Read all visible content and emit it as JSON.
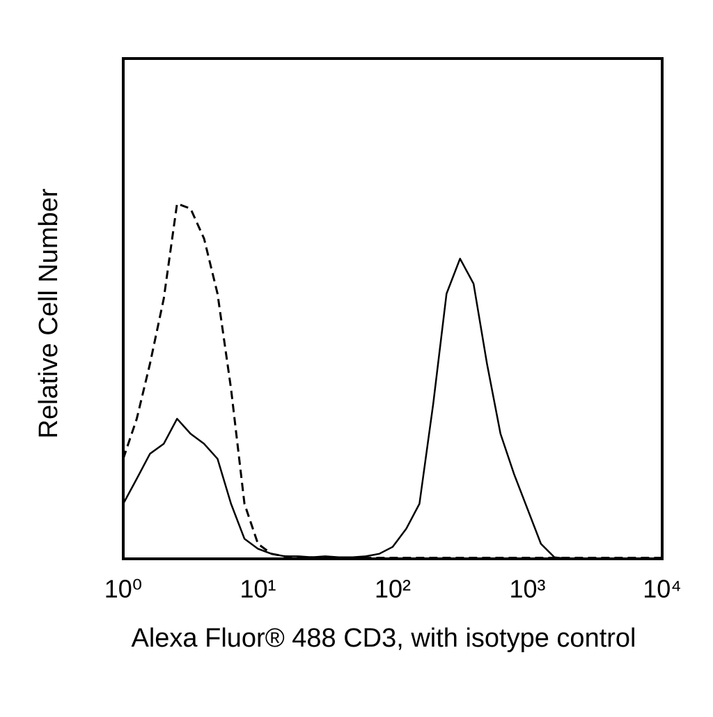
{
  "chart_data": {
    "type": "line",
    "xlabel": "Alexa Fluor® 488 CD3, with isotype control",
    "ylabel": "Relative Cell Number",
    "xscale": "log",
    "xlim": [
      1,
      10000
    ],
    "xticks": [
      {
        "value": 1,
        "label": "10⁰"
      },
      {
        "value": 10,
        "label": "10¹"
      },
      {
        "value": 100,
        "label": "10²"
      },
      {
        "value": 1000,
        "label": "10³"
      },
      {
        "value": 10000,
        "label": "10⁴"
      }
    ],
    "ylim": [
      0,
      100
    ],
    "grid": false,
    "series": [
      {
        "color": "#000000",
        "dash": "dashed",
        "x": [
          1,
          1.26,
          1.58,
          2,
          2.51,
          3.16,
          3.98,
          5.01,
          6.31,
          7.94,
          10,
          12.6,
          15.8,
          20,
          25.1,
          31.6,
          39.8,
          50.1,
          63.1,
          79.4,
          100,
          126,
          158,
          200,
          251,
          316,
          398,
          501,
          631,
          794,
          1000,
          1259,
          1585,
          1995,
          2512,
          3162,
          3981,
          5012,
          6310,
          7943,
          10000
        ],
        "values": [
          20,
          28,
          39,
          52,
          71,
          70,
          64,
          53,
          34,
          11,
          3,
          1,
          0.5,
          0.3,
          0.3,
          0.2,
          0.2,
          0.2,
          0.2,
          0.2,
          0.2,
          0.2,
          0.2,
          0.2,
          0.2,
          0.2,
          0.2,
          0.2,
          0.2,
          0.2,
          0.2,
          0.2,
          0.2,
          0.2,
          0.2,
          0.2,
          0.2,
          0.2,
          0.2,
          0.2,
          0.2
        ]
      },
      {
        "color": "#000000",
        "dash": "solid",
        "x": [
          1,
          1.26,
          1.58,
          2,
          2.51,
          3.16,
          3.98,
          5.01,
          6.31,
          7.94,
          10,
          12.6,
          15.8,
          20,
          25.1,
          31.6,
          39.8,
          50.1,
          63.1,
          79.4,
          100,
          126,
          158,
          200,
          251,
          316,
          398,
          501,
          631,
          794,
          1000,
          1259,
          1585,
          1995,
          2512,
          3162,
          3981,
          5012,
          6310,
          7943,
          10000
        ],
        "values": [
          11,
          16,
          21,
          23,
          28,
          25,
          23,
          20,
          11,
          4,
          2,
          1,
          0.5,
          0.5,
          0.3,
          0.5,
          0.3,
          0.3,
          0.5,
          1,
          2.4,
          6,
          11,
          31,
          53,
          60,
          55,
          39,
          25,
          17,
          10,
          3,
          0.3,
          0,
          0,
          0,
          0,
          0,
          0,
          0,
          0
        ]
      }
    ]
  }
}
